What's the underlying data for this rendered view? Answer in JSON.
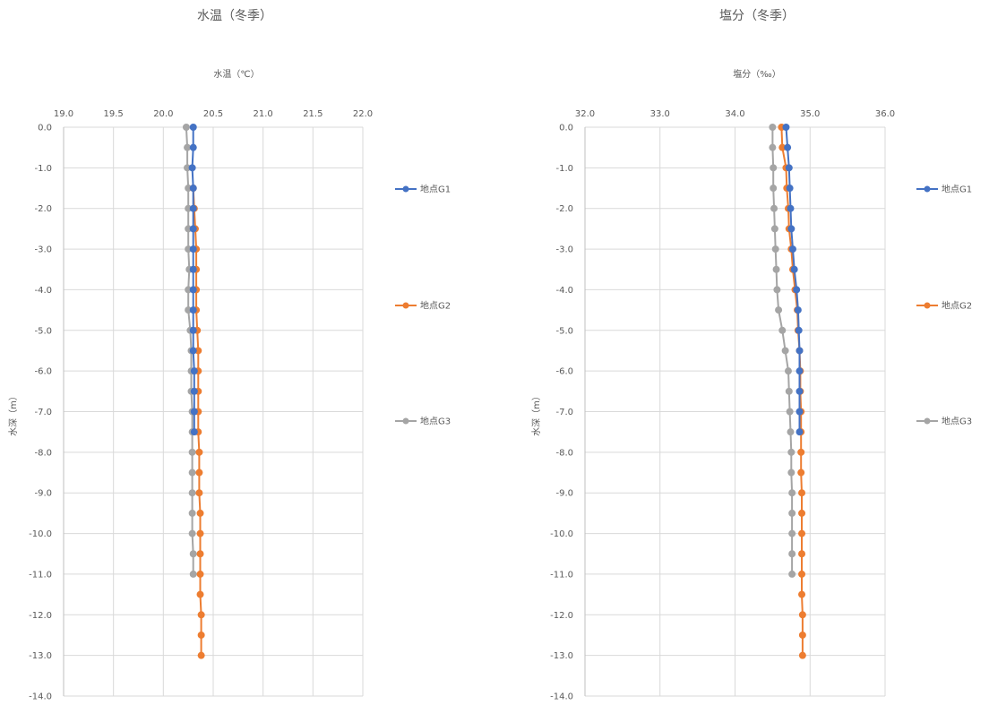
{
  "chart_data": [
    {
      "type": "line",
      "title": "水温（冬季）",
      "xlabel": "水温（℃）",
      "ylabel": "水深（m）",
      "xlim": [
        19.0,
        22.0
      ],
      "ylim": [
        -14.0,
        0.0
      ],
      "x_ticks": [
        "19.0",
        "19.5",
        "20.0",
        "20.5",
        "21.0",
        "21.5",
        "22.0"
      ],
      "y_ticks": [
        "0.0",
        "-1.0",
        "-2.0",
        "-3.0",
        "-4.0",
        "-5.0",
        "-6.0",
        "-7.0",
        "-8.0",
        "-9.0",
        "-10.0",
        "-11.0",
        "-12.0",
        "-13.0",
        "-14.0"
      ],
      "x_axis_position": "top",
      "grid": true,
      "legend_position": "right",
      "series": [
        {
          "name": "地点G1",
          "color": "#4472C4",
          "depth": [
            0,
            -0.5,
            -1,
            -1.5,
            -2,
            -2.5,
            -3,
            -3.5,
            -4,
            -4.5,
            -5,
            -5.5,
            -6,
            -6.5,
            -7,
            -7.5
          ],
          "value": [
            20.3,
            20.3,
            20.29,
            20.3,
            20.3,
            20.3,
            20.3,
            20.3,
            20.3,
            20.3,
            20.3,
            20.3,
            20.31,
            20.31,
            20.31,
            20.31
          ]
        },
        {
          "name": "地点G2",
          "color": "#ED7D31",
          "depth": [
            -1.5,
            -2,
            -2.5,
            -3,
            -3.5,
            -4,
            -4.5,
            -5,
            -5.5,
            -6,
            -6.5,
            -7,
            -7.5,
            -8,
            -8.5,
            -9,
            -9.5,
            -10,
            -10.5,
            -11,
            -11.5,
            -12,
            -12.5,
            -13
          ],
          "value": [
            20.3,
            20.31,
            20.32,
            20.33,
            20.33,
            20.33,
            20.33,
            20.34,
            20.35,
            20.35,
            20.35,
            20.35,
            20.35,
            20.36,
            20.36,
            20.36,
            20.37,
            20.37,
            20.37,
            20.37,
            20.37,
            20.38,
            20.38,
            20.38
          ]
        },
        {
          "name": "地点G3",
          "color": "#A5A5A5",
          "depth": [
            0,
            -0.5,
            -1,
            -1.5,
            -2,
            -2.5,
            -3,
            -3.5,
            -4,
            -4.5,
            -5,
            -5.5,
            -6,
            -6.5,
            -7,
            -7.5,
            -8,
            -8.5,
            -9,
            -9.5,
            -10,
            -10.5,
            -11
          ],
          "value": [
            20.23,
            20.24,
            20.24,
            20.25,
            20.25,
            20.25,
            20.25,
            20.26,
            20.25,
            20.25,
            20.27,
            20.28,
            20.28,
            20.28,
            20.29,
            20.29,
            20.29,
            20.29,
            20.29,
            20.29,
            20.29,
            20.3,
            20.3
          ]
        }
      ]
    },
    {
      "type": "line",
      "title": "塩分（冬季）",
      "xlabel": "塩分（‰）",
      "ylabel": "水深（m）",
      "xlim": [
        32.0,
        36.0
      ],
      "ylim": [
        -14.0,
        0.0
      ],
      "x_ticks": [
        "32.0",
        "33.0",
        "34.0",
        "35.0",
        "36.0"
      ],
      "y_ticks": [
        "0.0",
        "-1.0",
        "-2.0",
        "-3.0",
        "-4.0",
        "-5.0",
        "-6.0",
        "-7.0",
        "-8.0",
        "-9.0",
        "-10.0",
        "-11.0",
        "-12.0",
        "-13.0",
        "-14.0"
      ],
      "x_axis_position": "top",
      "grid": true,
      "legend_position": "right",
      "series": [
        {
          "name": "地点G1",
          "color": "#4472C4",
          "depth": [
            0,
            -0.5,
            -1,
            -1.5,
            -2,
            -2.5,
            -3,
            -3.5,
            -4,
            -4.5,
            -5,
            -5.5,
            -6,
            -6.5,
            -7,
            -7.5
          ],
          "value": [
            34.68,
            34.7,
            34.72,
            34.73,
            34.74,
            34.75,
            34.77,
            34.79,
            34.82,
            34.84,
            34.85,
            34.86,
            34.86,
            34.86,
            34.86,
            34.86
          ]
        },
        {
          "name": "地点G2",
          "color": "#ED7D31",
          "depth": [
            0,
            -0.5,
            -1,
            -1.5,
            -2,
            -2.5,
            -3,
            -3.5,
            -4,
            -4.5,
            -5,
            -5.5,
            -6,
            -6.5,
            -7,
            -7.5,
            -8,
            -8.5,
            -9,
            -9.5,
            -10,
            -10.5,
            -11,
            -11.5,
            -12,
            -12.5,
            -13
          ],
          "value": [
            34.62,
            34.63,
            34.68,
            34.69,
            34.71,
            34.72,
            34.75,
            34.77,
            34.8,
            34.83,
            34.84,
            34.86,
            34.87,
            34.87,
            34.88,
            34.88,
            34.88,
            34.88,
            34.89,
            34.89,
            34.89,
            34.89,
            34.89,
            34.89,
            34.9,
            34.9,
            34.9
          ]
        },
        {
          "name": "地点G3",
          "color": "#A5A5A5",
          "depth": [
            0,
            -0.5,
            -1,
            -1.5,
            -2,
            -2.5,
            -3,
            -3.5,
            -4,
            -4.5,
            -5,
            -5.5,
            -6,
            -6.5,
            -7,
            -7.5,
            -8,
            -8.5,
            -9,
            -9.5,
            -10,
            -10.5,
            -11
          ],
          "value": [
            34.5,
            34.5,
            34.51,
            34.51,
            34.52,
            34.53,
            34.54,
            34.55,
            34.56,
            34.58,
            34.63,
            34.67,
            34.71,
            34.72,
            34.73,
            34.74,
            34.75,
            34.75,
            34.76,
            34.76,
            34.76,
            34.76,
            34.76
          ]
        }
      ]
    }
  ]
}
